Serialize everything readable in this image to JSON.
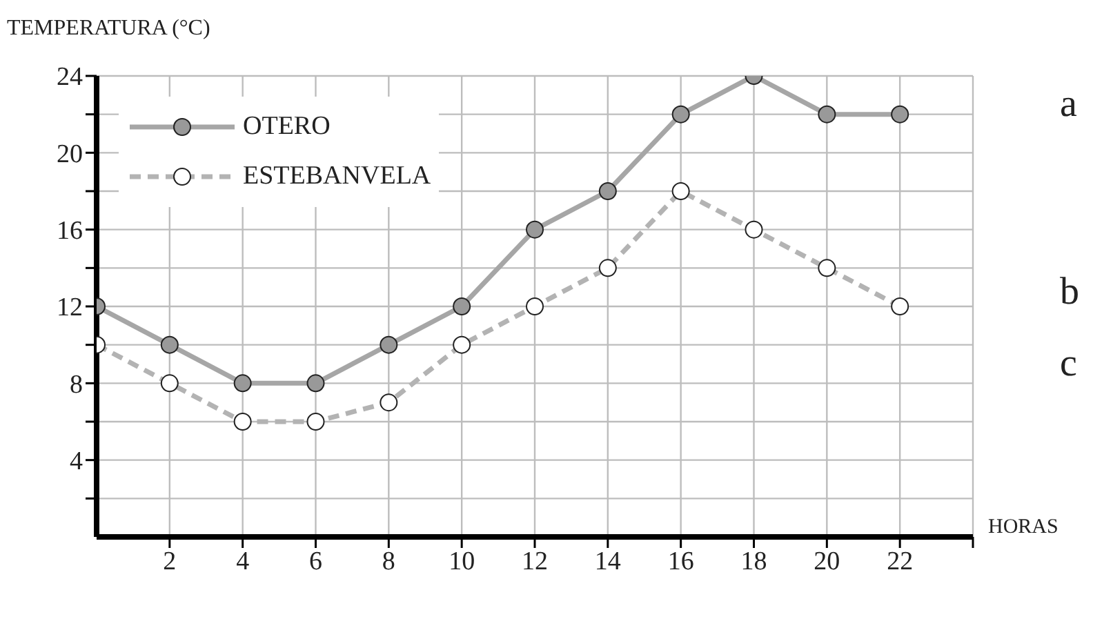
{
  "chart_data": {
    "type": "line",
    "ylabel": "TEMPERATURA (°C)",
    "xlabel": "HORAS",
    "x": [
      0,
      2,
      4,
      6,
      8,
      10,
      12,
      14,
      16,
      18,
      20,
      22
    ],
    "series": [
      {
        "name": "OTERO",
        "color": "#a6a6a6",
        "line_style": "solid",
        "values": [
          12,
          10,
          8,
          8,
          10,
          12,
          16,
          18,
          22,
          24,
          22,
          22
        ]
      },
      {
        "name": "ESTEBANVELA",
        "color": "#b3b3b3",
        "line_style": "dashed",
        "values": [
          10,
          8,
          6,
          6,
          7,
          10,
          12,
          14,
          18,
          16,
          14,
          12
        ]
      }
    ],
    "xlim": [
      0,
      24
    ],
    "xticks": [
      2,
      4,
      6,
      8,
      10,
      12,
      14,
      16,
      18,
      20,
      22,
      {
        "value": 24,
        "label": null
      }
    ],
    "ylim": [
      0,
      24
    ],
    "yticks": [
      {
        "value": 2,
        "label": null
      },
      4,
      {
        "value": 6,
        "label": null
      },
      8,
      {
        "value": 10,
        "label": null
      },
      12,
      {
        "value": 14,
        "label": null
      },
      16,
      {
        "value": 18,
        "label": null
      },
      20,
      {
        "value": 22,
        "label": null
      },
      24
    ],
    "grid": true,
    "legend": "top left",
    "marker": "circle",
    "annotations": [
      "a",
      "b",
      "c"
    ]
  }
}
